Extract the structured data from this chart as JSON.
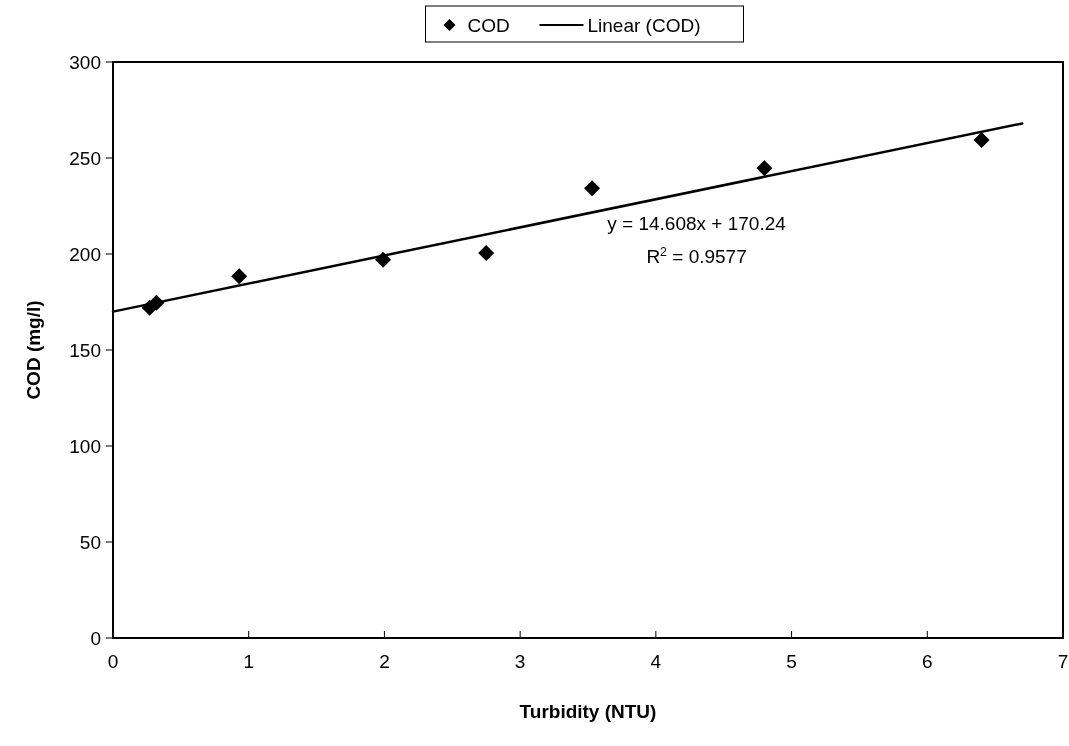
{
  "chart_data": {
    "type": "scatter",
    "xlabel": "Turbidity (NTU)",
    "ylabel": "COD (mg/l)",
    "xlim": [
      0,
      7
    ],
    "xticks": [
      0,
      1,
      2,
      3,
      4,
      5,
      6,
      7
    ],
    "ylim": [
      0,
      300
    ],
    "yticks": [
      0,
      50,
      100,
      150,
      200,
      250,
      300
    ],
    "series": [
      {
        "name": "COD",
        "color": "#000000",
        "marker": "diamond",
        "x": [
          0.27,
          0.32,
          0.93,
          1.99,
          2.75,
          3.53,
          4.8,
          6.4
        ],
        "values": [
          172,
          174.6,
          188.4,
          197,
          200.5,
          234.3,
          244.7,
          259.4
        ]
      },
      {
        "name": "Linear (COD)",
        "type": "line",
        "color": "#000000",
        "marker": "none",
        "line_style": "solid",
        "x": [
          0,
          6.7
        ],
        "values": [
          170,
          268
        ]
      }
    ],
    "legend": "top",
    "grid": false,
    "annotations": [
      "y = 14.608x + 170.24",
      "R$^{2}$ = 0.9577"
    ]
  }
}
